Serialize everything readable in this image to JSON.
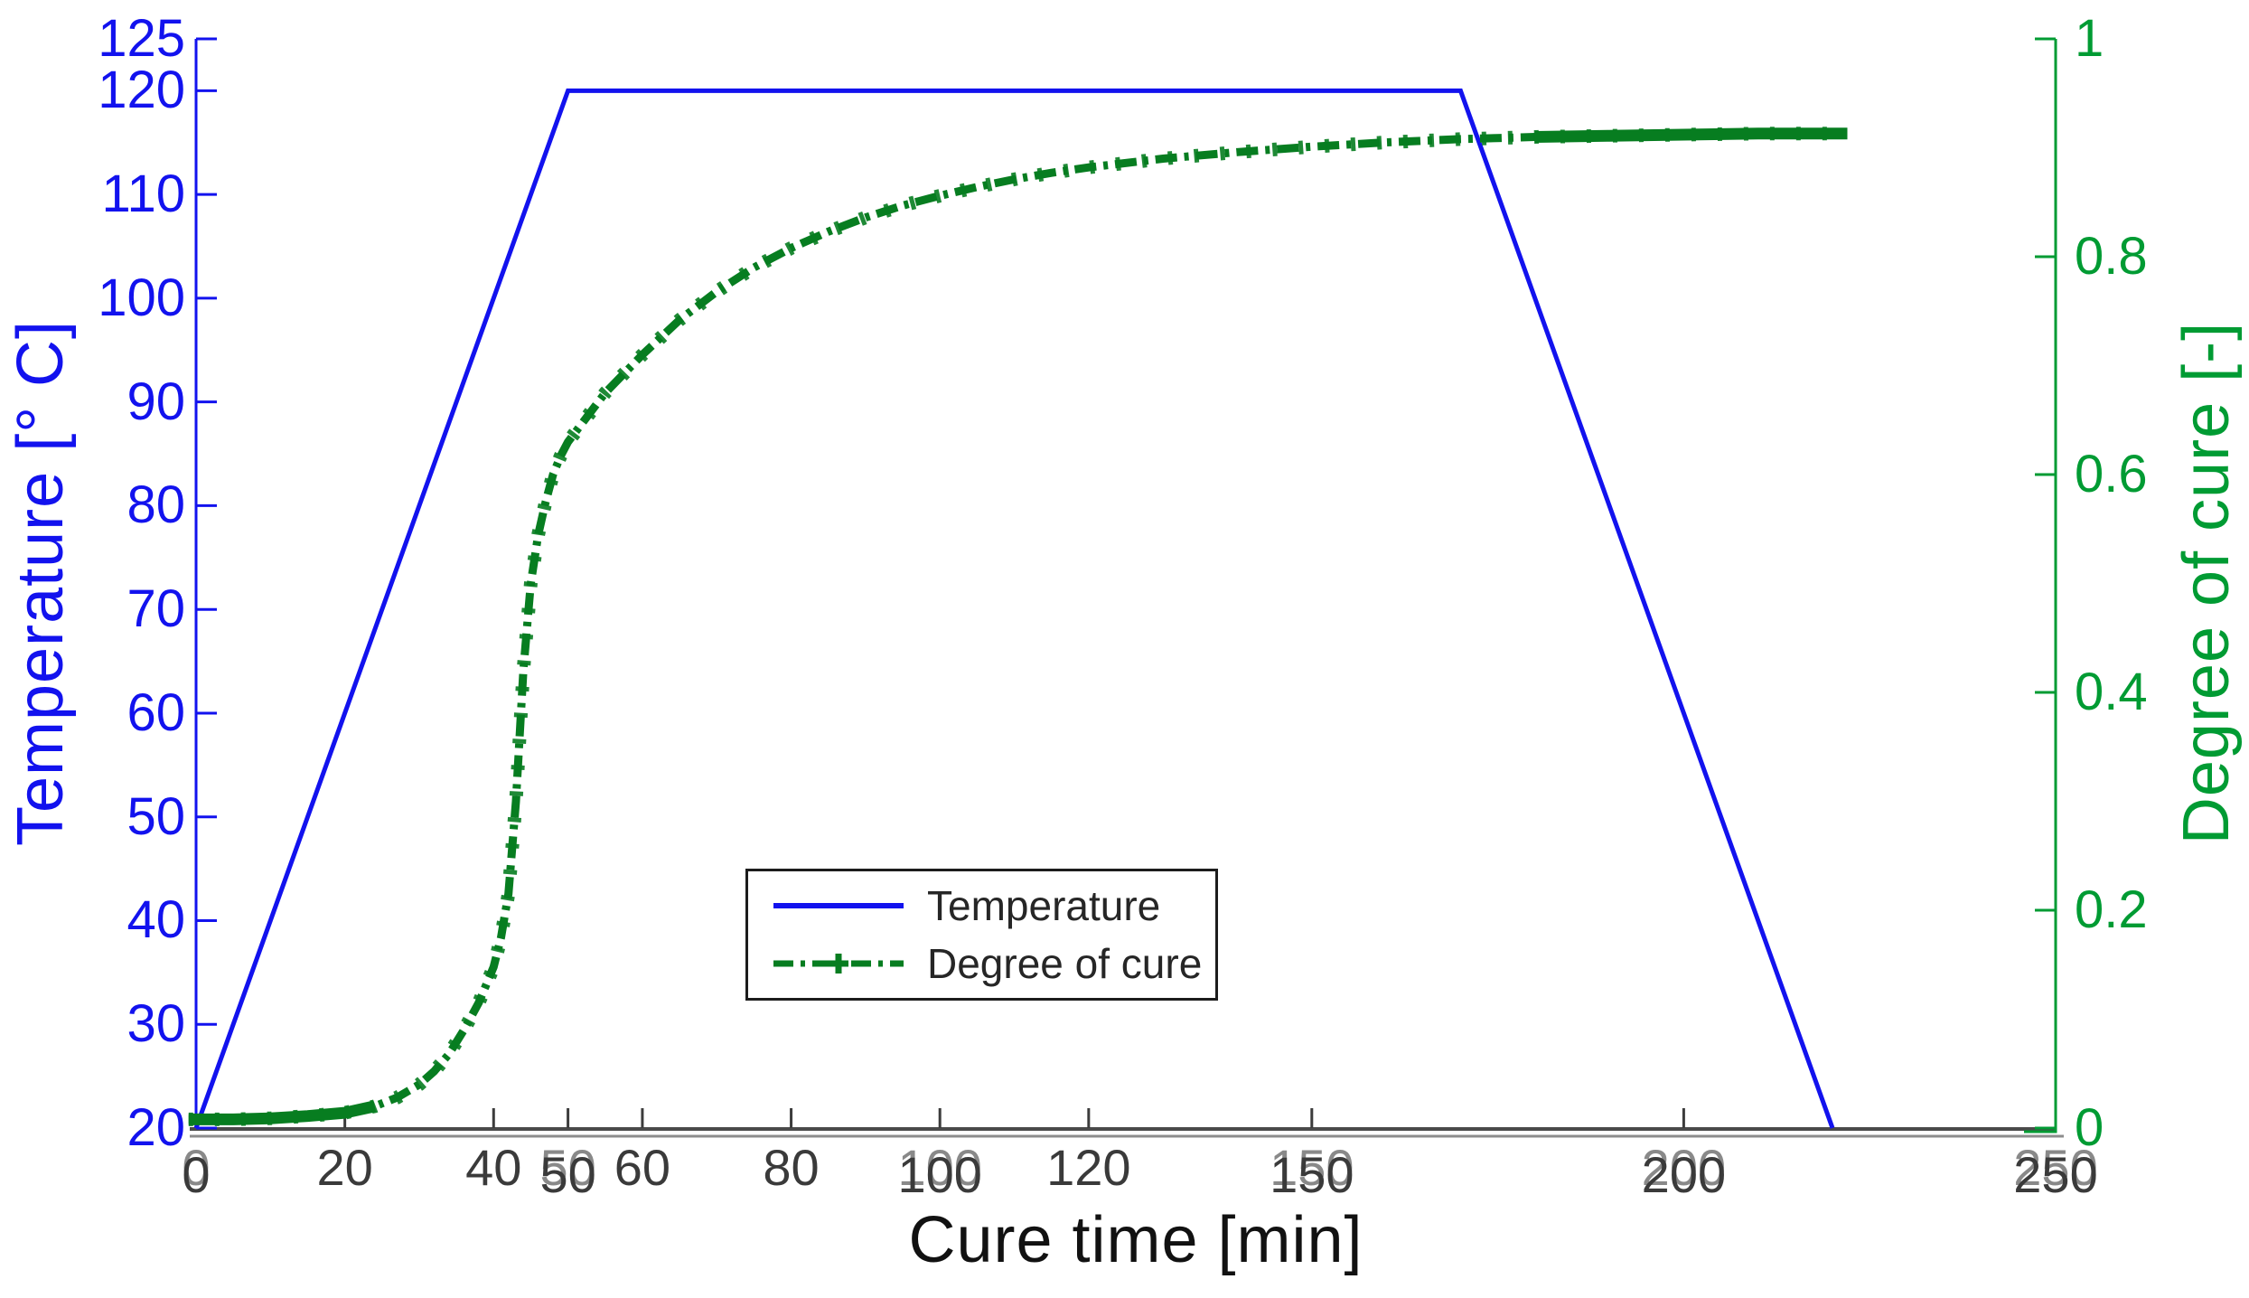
{
  "figure": {
    "background": "#ffffff"
  },
  "chart_data": {
    "type": "line",
    "title": "",
    "xlabel": "Cure time [min]",
    "xlabel_color": "#111111",
    "x_range": [
      0,
      250
    ],
    "x_ticks_every20": [
      20,
      40,
      60,
      80,
      120
    ],
    "x_ticks_every50": [
      0,
      50,
      100,
      150,
      200,
      250
    ],
    "x_tick_color": "#3a3a3a",
    "axis_bottom_color": "#4a4a4a",
    "axis_bottom_ghost_color": "#8c8c8c",
    "grid": false,
    "y_left": {
      "label": "Temperature [° C]",
      "range": [
        20,
        125
      ],
      "ticks": [
        20,
        30,
        40,
        50,
        60,
        70,
        80,
        90,
        100,
        110,
        120,
        125
      ],
      "color": "#1212ee"
    },
    "y_right": {
      "label": "Degree of cure [-]",
      "range": [
        0,
        1
      ],
      "ticks": [
        0,
        0.2,
        0.4,
        0.6,
        0.8,
        1
      ],
      "color": "#009b33"
    },
    "legend": {
      "position": "lower-center",
      "entries": [
        {
          "label": "Temperature",
          "color": "#1212ee",
          "style": "solid"
        },
        {
          "label": "Degree of cure",
          "color": "#077d20",
          "style": "dash-dot-plus"
        }
      ]
    },
    "series": [
      {
        "name": "Temperature",
        "axis": "left",
        "color": "#1212ee",
        "style": "solid",
        "points": [
          [
            0,
            20
          ],
          [
            50,
            120
          ],
          [
            170,
            120
          ],
          [
            220,
            20
          ]
        ]
      },
      {
        "name": "Degree of cure",
        "axis": "right",
        "color": "#077d20",
        "style": "dash-dot",
        "final_value": 0.913,
        "points": [
          [
            -1,
            0.008
          ],
          [
            0,
            0.008
          ],
          [
            5,
            0.008
          ],
          [
            10,
            0.009
          ],
          [
            15,
            0.011
          ],
          [
            20,
            0.014
          ],
          [
            24,
            0.02
          ],
          [
            27,
            0.028
          ],
          [
            30,
            0.04
          ],
          [
            32,
            0.052
          ],
          [
            34,
            0.068
          ],
          [
            36,
            0.09
          ],
          [
            38,
            0.115
          ],
          [
            40,
            0.148
          ],
          [
            41,
            0.175
          ],
          [
            42,
            0.215
          ],
          [
            43,
            0.3
          ],
          [
            44,
            0.42
          ],
          [
            45,
            0.5
          ],
          [
            46,
            0.545
          ],
          [
            47,
            0.575
          ],
          [
            48,
            0.6
          ],
          [
            49,
            0.617
          ],
          [
            50,
            0.63
          ],
          [
            55,
            0.675
          ],
          [
            60,
            0.71
          ],
          [
            65,
            0.742
          ],
          [
            70,
            0.768
          ],
          [
            75,
            0.79
          ],
          [
            80,
            0.808
          ],
          [
            85,
            0.823
          ],
          [
            90,
            0.836
          ],
          [
            95,
            0.847
          ],
          [
            100,
            0.856
          ],
          [
            105,
            0.864
          ],
          [
            110,
            0.871
          ],
          [
            115,
            0.877
          ],
          [
            120,
            0.882
          ],
          [
            130,
            0.89
          ],
          [
            140,
            0.896
          ],
          [
            150,
            0.901
          ],
          [
            160,
            0.905
          ],
          [
            170,
            0.908
          ],
          [
            180,
            0.91
          ],
          [
            190,
            0.911
          ],
          [
            200,
            0.912
          ],
          [
            210,
            0.913
          ],
          [
            222,
            0.913
          ]
        ]
      }
    ]
  }
}
